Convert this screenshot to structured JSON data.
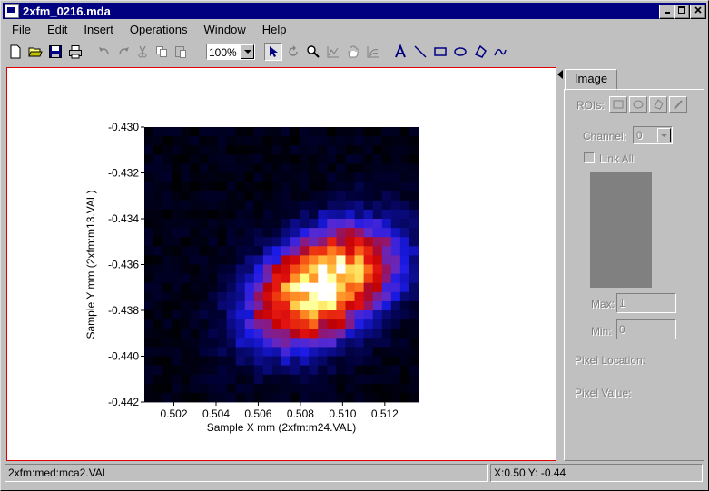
{
  "window": {
    "title": "2xfm_0216.mda",
    "controls": [
      "minimize",
      "maximize",
      "close"
    ]
  },
  "menu": [
    "File",
    "Edit",
    "Insert",
    "Operations",
    "Window",
    "Help"
  ],
  "toolbar": {
    "zoom_value": "100%",
    "buttons": [
      "new",
      "open",
      "save",
      "print",
      "undo",
      "redo",
      "cut",
      "copy",
      "paste",
      "select-arrow",
      "rotate",
      "zoom",
      "line-plot",
      "pan-hand",
      "contour",
      "text",
      "line",
      "rectangle",
      "ellipse",
      "polygon",
      "freehand"
    ]
  },
  "side_panel": {
    "tab": "Image",
    "roi_label": "ROIs:",
    "channel_label": "Channel:",
    "channel_value": "0",
    "link_all_label": "Link All",
    "max_label": "Max:",
    "max_value": "1",
    "min_label": "Min:",
    "min_value": "0",
    "pixel_location_label": "Pixel Location:",
    "pixel_value_label": "Pixel Value:"
  },
  "status": {
    "left": "2xfm:med:mca2.VAL",
    "right": "X:0.50  Y: -0.44"
  },
  "chart_data": {
    "type": "heatmap",
    "xlabel": "Sample X mm (2xfm:m24.VAL)",
    "ylabel": "Sample Y mm (2xfm:m13.VAL)",
    "xlim": [
      0.5006,
      0.5136
    ],
    "ylim": [
      -0.442,
      -0.43
    ],
    "xticks": [
      "0.502",
      "0.504",
      "0.506",
      "0.508",
      "0.510",
      "0.512"
    ],
    "yticks": [
      "-0.430",
      "-0.432",
      "-0.434",
      "-0.436",
      "-0.438",
      "-0.440",
      "-0.442"
    ],
    "grid_cols": 30,
    "grid_rows": 30,
    "colormap": [
      "#000000",
      "#000033",
      "#0a0a80",
      "#1a1ae6",
      "#5a2ad0",
      "#8a1a80",
      "#c00000",
      "#e01010",
      "#f04010",
      "#ff8020",
      "#ffc040",
      "#ffff80",
      "#ffffff"
    ],
    "hotspot": {
      "x": 0.5091,
      "y": -0.4369,
      "peak": 1.0,
      "spread_major": 0.0032,
      "spread_minor": 0.0014,
      "angle_deg": 62
    }
  }
}
